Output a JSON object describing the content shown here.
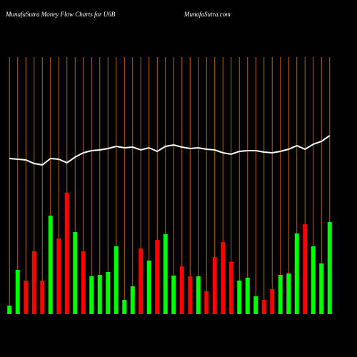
{
  "chart_data": {
    "type": "bar",
    "title": "MunafaSutra  Money Flow  Charts for U6B",
    "subtitle": "MunafaSutra.com",
    "ylim": [
      0,
      360
    ],
    "grid_color": "#b5600b",
    "values": [
      12,
      62,
      47,
      88,
      47,
      138,
      106,
      170,
      115,
      88,
      53,
      55,
      59,
      95,
      20,
      39,
      92,
      75,
      104,
      112,
      54,
      67,
      53,
      53,
      32,
      80,
      101,
      73,
      47,
      51,
      25,
      20,
      35,
      55,
      57,
      113,
      126,
      95,
      71,
      129
    ],
    "colors": [
      "#00ff00",
      "#00ff00",
      "#ff0000",
      "#ff0000",
      "#ff0000",
      "#00ff00",
      "#ff0000",
      "#ff0000",
      "#00ff00",
      "#ff0000",
      "#00ff00",
      "#00ff00",
      "#00ff00",
      "#00ff00",
      "#00ff00",
      "#00ff00",
      "#ff0000",
      "#00ff00",
      "#ff0000",
      "#00ff00",
      "#00ff00",
      "#ff0000",
      "#ff0000",
      "#00ff00",
      "#ff0000",
      "#ff0000",
      "#ff0000",
      "#ff0000",
      "#00ff00",
      "#00ff00",
      "#00ff00",
      "#ff0000",
      "#ff0000",
      "#00ff00",
      "#00ff00",
      "#00ff00",
      "#ff0000",
      "#00ff00",
      "#00ff00",
      "#00ff00"
    ],
    "line": {
      "color": "#ffffff",
      "values": [
        218,
        217,
        216,
        211,
        209,
        218,
        217,
        212,
        220,
        226,
        229,
        230,
        232,
        235,
        233,
        234,
        230,
        233,
        228,
        235,
        237,
        234,
        232,
        233,
        231,
        230,
        226,
        224,
        228,
        229,
        229,
        227,
        226,
        228,
        231,
        236,
        231,
        238,
        242,
        250
      ]
    }
  }
}
